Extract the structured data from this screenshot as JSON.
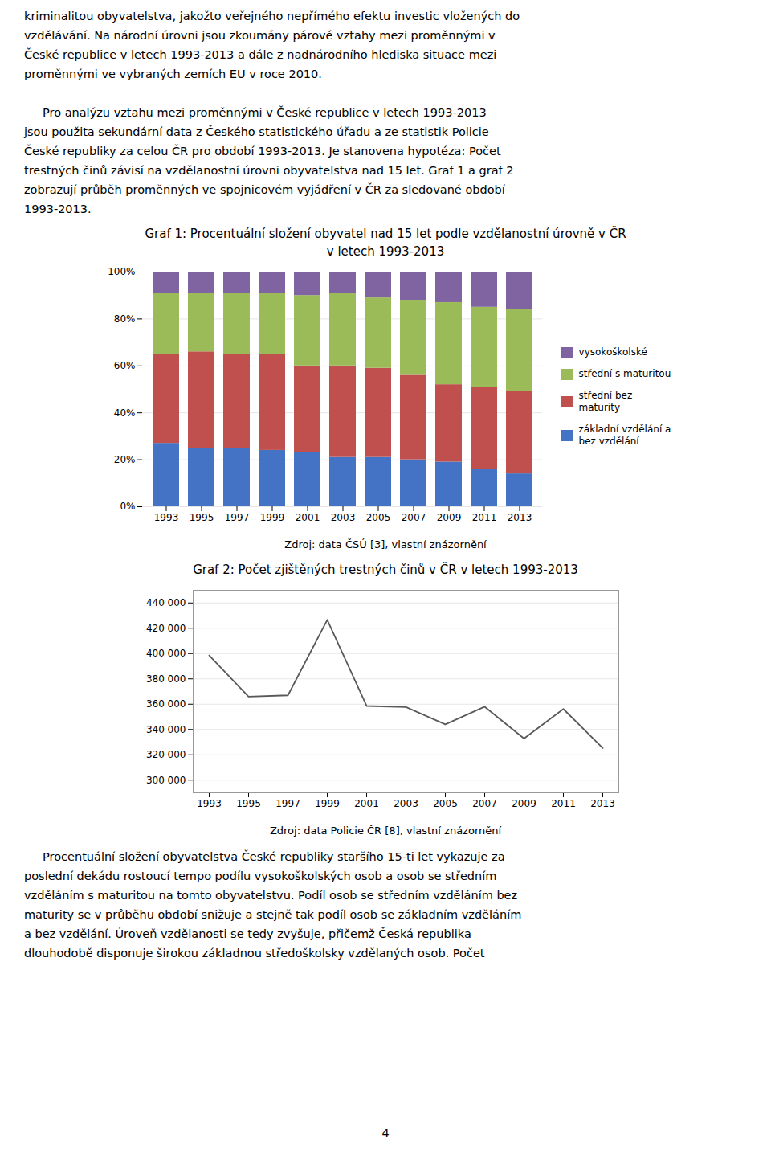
{
  "page_text_top": [
    "kriminalitou obyvatelstva, jakožto veřejného nepřímého efektu investic vložených do",
    "vzdělávání. Na národní úrovni jsou zkoumány párové vztahy mezi proměnnými v",
    "České republice v letech 1993-2013 a dále z nadnárodního hlediska situace mezi",
    "proměnnými ve vybraných zemích EU v roce 2010."
  ],
  "page_text_indent": [
    "     Pro analýzu vztahu mezi proměnnými v České republice v letech 1993-2013",
    "jsou použita sekundární data z Českého statistického úřadu a ze statistik Policie",
    "České republiky za celou ČR pro období 1993-2013. Je stanovena hypotéza: Počet",
    "trestných činů závisí na vzdělanostní úrovni obyvatelstva nad 15 let. Graf 1 a graf 2",
    "zobrazují průběh proměnných ve spojnicovém vyjádření v ČR za sledované období",
    "1993-2013."
  ],
  "chart_data": [
    {
      "type": "bar",
      "stacked": true,
      "title": "Graf 1: Procentuální složení obyvatel nad 15 let podle vzdělanostní úrovně v ČR\nv letech 1993-2013",
      "caption": "Zdroj: data ČSÚ [3], vlastní znázornění",
      "categories": [
        1993,
        1995,
        1997,
        1999,
        2001,
        2003,
        2005,
        2007,
        2009,
        2011,
        2013
      ],
      "series": [
        {
          "name": "základní vzdělání a\nbez vzdělání",
          "color": "#4472C4",
          "values": [
            27,
            25,
            25,
            24,
            23,
            21,
            21,
            20,
            19,
            16,
            14
          ]
        },
        {
          "name": "střední bez\nmaturity",
          "color": "#C0504D",
          "values": [
            38,
            41,
            40,
            41,
            37,
            39,
            38,
            36,
            33,
            35,
            35
          ]
        },
        {
          "name": "střední s maturitou",
          "color": "#9BBB59",
          "values": [
            26,
            25,
            26,
            26,
            30,
            31,
            30,
            32,
            35,
            34,
            35
          ]
        },
        {
          "name": "vysokoškolské",
          "color": "#8064A2",
          "values": [
            9,
            9,
            9,
            9,
            10,
            9,
            11,
            12,
            13,
            15,
            16
          ]
        }
      ],
      "ylim": [
        0,
        100
      ],
      "yticks": [
        {
          "value": 0,
          "label": "0%"
        },
        {
          "value": 20,
          "label": "20%"
        },
        {
          "value": 40,
          "label": "40%"
        },
        {
          "value": 60,
          "label": "60%"
        },
        {
          "value": 80,
          "label": "80%"
        },
        {
          "value": 100,
          "label": "100%"
        }
      ],
      "grid": true,
      "legend": "right"
    },
    {
      "type": "line",
      "title": "Graf 2: Počet zjištěných trestných činů v ČR v letech 1993-2013",
      "caption": "Zdroj: data Policie ČR [8], vlastní znázornění",
      "categories": [
        1993,
        1995,
        1997,
        1999,
        2001,
        2003,
        2005,
        2007,
        2009,
        2011,
        2013
      ],
      "values": [
        398505,
        366009,
        366998,
        426626,
        358577,
        357740,
        344060,
        357972,
        332829,
        356188,
        325270
      ],
      "color": "#595959",
      "ylim": [
        290000,
        450000
      ],
      "yticks": [
        {
          "value": 300000,
          "label": "300 000"
        },
        {
          "value": 320000,
          "label": "320 000"
        },
        {
          "value": 340000,
          "label": "340 000"
        },
        {
          "value": 360000,
          "label": "360 000"
        },
        {
          "value": 380000,
          "label": "380 000"
        },
        {
          "value": 400000,
          "label": "400 000"
        },
        {
          "value": 420000,
          "label": "420 000"
        },
        {
          "value": 440000,
          "label": "440 000"
        }
      ],
      "grid": true
    }
  ],
  "bottom_text": [
    "     Procentuální složení obyvatelstva České republiky staršího 15-ti let vykazuje za",
    "poslední dekádu rostoucí tempo podílu vysokoškolských osob a osob se středním",
    "vzděláním s maturitou na tomto obyvatelstvu. Podíl osob se středním vzděláním bez",
    "maturity se v průběhu období snižuje a stejně tak podíl osob se základním vzděláním",
    "a bez vzdělání. Úroveň vzdělanosti se tedy zvyšuje, přičemž Česká republika",
    "dlouhodobě disponuje širokou základnou středoškolsky vzdělaných osob. Počet"
  ],
  "page_number": "4"
}
